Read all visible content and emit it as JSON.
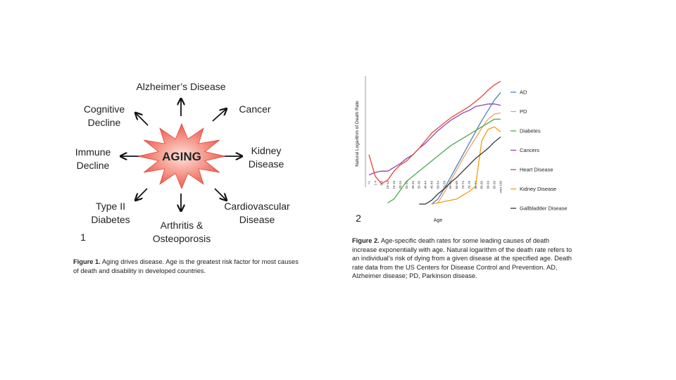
{
  "figure1": {
    "center": "AGING",
    "nodes": [
      {
        "lines": [
          "Alzheimer’s Disease"
        ]
      },
      {
        "lines": [
          "Cancer"
        ]
      },
      {
        "lines": [
          "Kidney",
          "Disease"
        ]
      },
      {
        "lines": [
          "Cardiovascular",
          "Disease"
        ]
      },
      {
        "lines": [
          "Arthritis &",
          "Osteoporosis"
        ]
      },
      {
        "lines": [
          "Type II",
          "Diabetes"
        ]
      },
      {
        "lines": [
          "Immune",
          "Decline"
        ]
      },
      {
        "lines": [
          "Cognitive",
          "Decline"
        ]
      }
    ],
    "number": "1",
    "caption_label": "Figure 1.",
    "caption_text": "Aging drives disease. Age is the greatest risk factor for most causes of death and disability in developed countries."
  },
  "chart_data": {
    "type": "line",
    "number": "2",
    "y_label": "Natural Logarithm of Death Rate",
    "x_label": "Age",
    "categories": [
      "<1",
      "1-4",
      "5-9",
      "10-14",
      "15-19",
      "20-24",
      "25-29",
      "30-34",
      "35-39",
      "40-44",
      "45-49",
      "50-54",
      "55-59",
      "60-64",
      "65-69",
      "70-74",
      "75-79",
      "80-84",
      "85-89",
      "90-94",
      "95-99",
      "over 100"
    ],
    "ylim": [
      0,
      100
    ],
    "series": [
      {
        "name": "AD",
        "color": "#4f81bd",
        "values": [
          null,
          null,
          null,
          null,
          null,
          null,
          null,
          null,
          null,
          null,
          0,
          4,
          12,
          21,
          30,
          39,
          48,
          57,
          66,
          74,
          82,
          88
        ]
      },
      {
        "name": "PD",
        "color": "#f0a060",
        "values": [
          null,
          null,
          null,
          null,
          null,
          null,
          null,
          null,
          null,
          null,
          null,
          1,
          9,
          18,
          27,
          36,
          44,
          52,
          60,
          67,
          71,
          72
        ]
      },
      {
        "name": "Diabetes",
        "color": "#4ca64c",
        "values": [
          null,
          null,
          null,
          1,
          4,
          11,
          18,
          22,
          26,
          30,
          34,
          38,
          42,
          46,
          49,
          52,
          55,
          58,
          61,
          64,
          67,
          67
        ]
      },
      {
        "name": "Cancers",
        "color": "#8e44ad",
        "values": [
          23,
          25,
          26,
          26,
          29,
          32,
          36,
          39,
          44,
          48,
          53,
          58,
          62,
          66,
          69,
          72,
          74,
          77,
          78,
          79,
          79,
          78
        ]
      },
      {
        "name": "Heart Disease",
        "color": "#e0453a",
        "values": [
          39,
          22,
          16,
          19,
          26,
          31,
          34,
          39,
          44,
          50,
          56,
          60,
          64,
          68,
          71,
          74,
          77,
          81,
          85,
          90,
          94,
          97
        ]
      },
      {
        "name": "Kidney Disease",
        "color": "#f39c12",
        "values": [
          null,
          null,
          null,
          null,
          null,
          null,
          null,
          null,
          null,
          null,
          0,
          1,
          2,
          3,
          4,
          7,
          10,
          14,
          50,
          59,
          61,
          57
        ]
      },
      {
        "name": "Gallbladder Disease",
        "color": "#333333",
        "values": [
          null,
          null,
          null,
          null,
          null,
          null,
          null,
          null,
          0,
          0,
          3,
          8,
          12,
          17,
          21,
          26,
          31,
          36,
          40,
          44,
          49,
          53
        ]
      }
    ],
    "caption_label": "Figure 2.",
    "caption_text": "Age-specific death rates for some leading causes of death increase exponentially with age. Natural logarithm of the death rate refers to an individual’s risk of dying from a given disease at the specified age. Death rate data from the US Centers for Disease Control and Prevention. AD, Alzheimer disease; PD, Parkinson disease."
  }
}
